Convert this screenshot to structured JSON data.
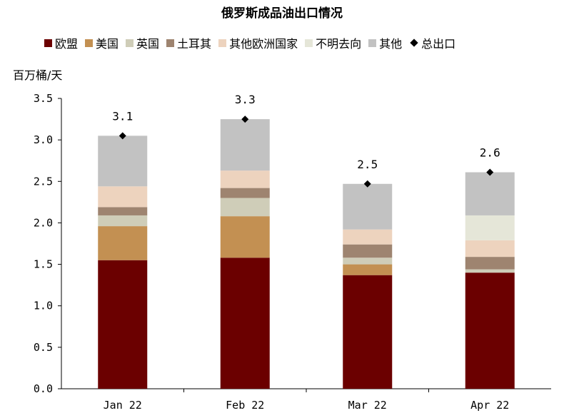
{
  "chart_data": {
    "type": "bar",
    "stacked": true,
    "title": "俄罗斯成品油出口情况",
    "ylabel": "百万桶/天",
    "xlabel": "",
    "categories": [
      "Jan 22",
      "Feb 22",
      "Mar 22",
      "Apr 22"
    ],
    "ylim": [
      0,
      3.5
    ],
    "yticks": [
      "0.0",
      "0.5",
      "1.0",
      "1.5",
      "2.0",
      "2.5",
      "3.0",
      "3.5"
    ],
    "legend_position": "top",
    "series": [
      {
        "name": "欧盟",
        "color": "#6B0000",
        "values": [
          1.55,
          1.58,
          1.37,
          1.4
        ]
      },
      {
        "name": "美国",
        "color": "#C39052",
        "values": [
          0.41,
          0.5,
          0.13,
          0.0
        ]
      },
      {
        "name": "英国",
        "color": "#CFCDB8",
        "values": [
          0.13,
          0.22,
          0.08,
          0.04
        ]
      },
      {
        "name": "土耳其",
        "color": "#9E8470",
        "values": [
          0.1,
          0.12,
          0.16,
          0.15
        ]
      },
      {
        "name": "其他欧洲国家",
        "color": "#EDD3BE",
        "values": [
          0.25,
          0.21,
          0.18,
          0.2
        ]
      },
      {
        "name": "不明去向",
        "color": "#E5E6D8",
        "values": [
          0.0,
          0.0,
          0.0,
          0.3
        ]
      },
      {
        "name": "其他",
        "color": "#C2C2C2",
        "values": [
          0.61,
          0.62,
          0.55,
          0.52
        ]
      }
    ],
    "total": {
      "name": "总出口",
      "values": [
        3.05,
        3.25,
        2.47,
        2.61
      ],
      "labels": [
        "3.1",
        "3.3",
        "2.5",
        "2.6"
      ]
    }
  }
}
